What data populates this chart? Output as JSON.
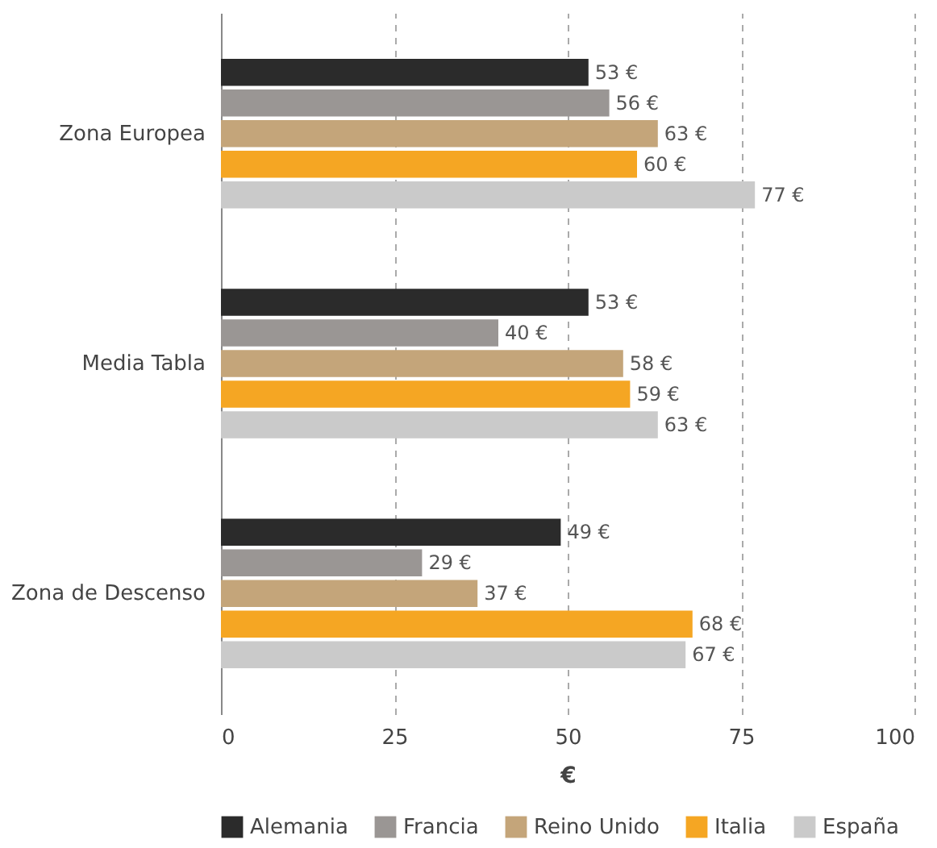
{
  "chart_data": {
    "type": "bar",
    "orientation": "horizontal",
    "categories": [
      "Zona Europea",
      "Media Tabla",
      "Zona de Descenso"
    ],
    "series": [
      {
        "name": "Alemania",
        "color": "#2b2b2b",
        "values": [
          53,
          53,
          49
        ],
        "value_labels": [
          "53 €",
          "53 €",
          "49 €"
        ]
      },
      {
        "name": "Francia",
        "color": "#9a9694",
        "values": [
          56,
          40,
          29
        ],
        "value_labels": [
          "56 €",
          "40 €",
          "29 €"
        ]
      },
      {
        "name": "Reino Unido",
        "color": "#c4a57a",
        "values": [
          63,
          58,
          37
        ],
        "value_labels": [
          "63 €",
          "58 €",
          "37 €"
        ]
      },
      {
        "name": "Italia",
        "color": "#f5a623",
        "values": [
          60,
          59,
          68
        ],
        "value_labels": [
          "60 €",
          "59 €",
          "68 €"
        ]
      },
      {
        "name": "España",
        "color": "#cacaca",
        "values": [
          77,
          63,
          67
        ],
        "value_labels": [
          "77 €",
          "63 €",
          "67 €"
        ]
      }
    ],
    "xlim": [
      0,
      100
    ],
    "xticks": [
      0,
      25,
      50,
      75,
      100
    ],
    "xlabel": "€",
    "grid": "x",
    "legend": "bottom"
  }
}
